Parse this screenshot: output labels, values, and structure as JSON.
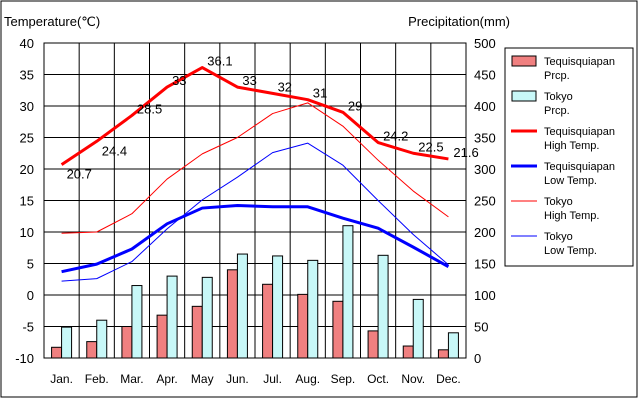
{
  "chart_data": {
    "type": "bar+line",
    "left_axis": {
      "title": "Temperature(℃)",
      "range": [
        -10,
        40
      ],
      "ticks": [
        "40",
        "35",
        "30",
        "25",
        "20",
        "15",
        "10",
        "5",
        "0",
        "-5",
        "-10"
      ]
    },
    "right_axis": {
      "title": "Precipitation(mm)",
      "range": [
        0,
        500
      ],
      "ticks": [
        "500",
        "450",
        "400",
        "350",
        "300",
        "250",
        "200",
        "150",
        "100",
        "50",
        "0"
      ]
    },
    "categories": [
      "Jan.",
      "Feb.",
      "Mar.",
      "Apr.",
      "May",
      "Jun.",
      "Jul.",
      "Aug.",
      "Sep.",
      "Oct.",
      "Nov.",
      "Dec."
    ],
    "grid": true,
    "legend_position": "right",
    "series": [
      {
        "name": "Tequisquiapan\nPrcp.",
        "kind": "bar",
        "axis": "right",
        "color": "#f08080",
        "values": [
          17,
          26,
          50,
          68,
          82,
          140,
          117,
          101,
          90,
          43,
          19,
          13
        ]
      },
      {
        "name": "Tokyo\nPrcp.",
        "kind": "bar",
        "axis": "right",
        "color": "#c8f8f8",
        "values": [
          49,
          60,
          115,
          130,
          128,
          165,
          162,
          155,
          210,
          163,
          93,
          40
        ]
      },
      {
        "name": "Tequisquiapan\nHigh Temp.",
        "kind": "line",
        "axis": "left",
        "color": "#ff0000",
        "width": "thick",
        "values": [
          20.7,
          24.4,
          28.5,
          33,
          36.1,
          33,
          32,
          31,
          29,
          24.2,
          22.5,
          21.6
        ],
        "labels": [
          "20.7",
          "24.4",
          "28.5",
          "33",
          "36.1",
          "33",
          "32",
          "31",
          "29",
          "24.2",
          "22.5",
          "21.6"
        ]
      },
      {
        "name": "Tequisquiapan\nLow Temp.",
        "kind": "line",
        "axis": "left",
        "color": "#0000ff",
        "width": "thick",
        "values": [
          3.7,
          4.9,
          7.3,
          11.3,
          13.8,
          14.2,
          14.0,
          14.0,
          12.2,
          10.6,
          7.6,
          4.5
        ]
      },
      {
        "name": "Tokyo\nHigh Temp.",
        "kind": "line",
        "axis": "left",
        "color": "#ff0000",
        "width": "thin",
        "values": [
          9.8,
          10.0,
          12.9,
          18.4,
          22.4,
          25.0,
          28.8,
          30.5,
          26.8,
          21.4,
          16.5,
          12.4
        ]
      },
      {
        "name": "Tokyo\nLow Temp.",
        "kind": "line",
        "axis": "left",
        "color": "#0000ff",
        "width": "thin",
        "values": [
          2.2,
          2.6,
          5.3,
          10.5,
          15.1,
          18.7,
          22.6,
          24.1,
          20.6,
          15.0,
          9.6,
          4.8
        ]
      }
    ]
  }
}
